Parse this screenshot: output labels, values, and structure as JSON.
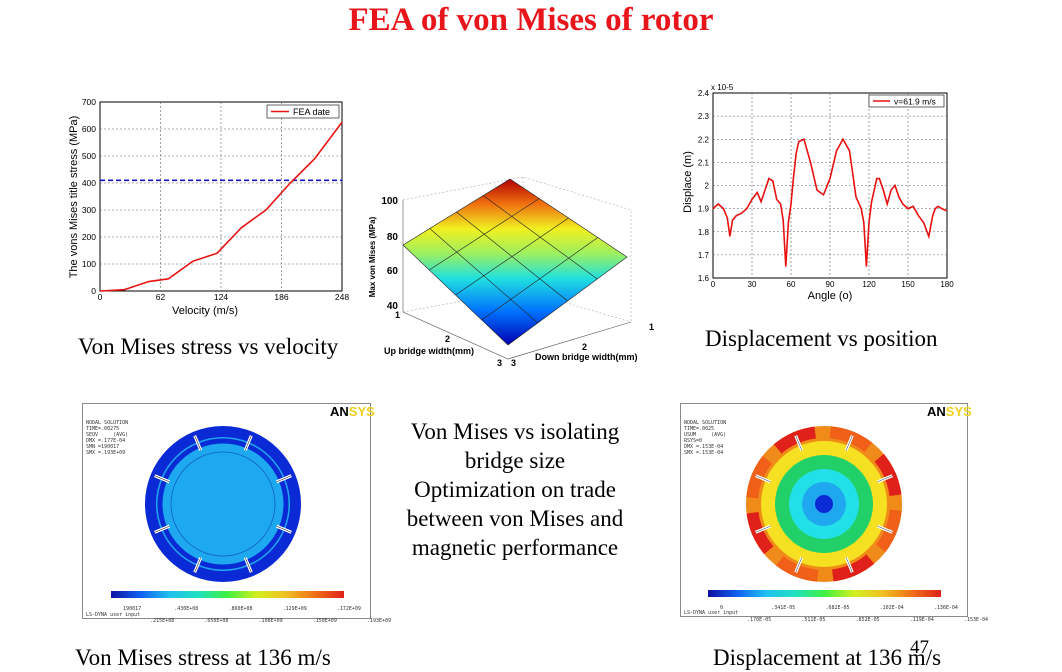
{
  "slide": {
    "title": "FEA of von Mises of rotor",
    "page_number": "47"
  },
  "captions": {
    "stress_vs_velocity": "Von Mises stress vs velocity",
    "displacement_vs_position": "Displacement vs position",
    "stress_at_136": "Von Mises stress at 136 m/s",
    "displacement_at_136": "Displacement at 136 m/s"
  },
  "center_text": {
    "lines": [
      "Von Mises vs isolating",
      "bridge size",
      "Optimization on trade",
      "between von Mises and",
      "magnetic performance"
    ]
  },
  "ansys": {
    "logo_black": "AN",
    "logo_color": "SYS",
    "stress_header": [
      "NODAL SOLUTION",
      "",
      "TIME=.00275",
      "SEQV     (AVG)",
      "DMX =.177E-04",
      "SMN =190017",
      "SMX =.193E+09"
    ],
    "stress_legend_top": [
      "190017",
      ".430E+08",
      ".860E+08",
      ".129E+09",
      ".172E+09"
    ],
    "stress_legend_bottom": [
      ".215E+08",
      ".650E+08",
      ".108E+09",
      ".150E+09",
      ".193E+09"
    ],
    "disp_header": [
      "NODAL SOLUTION",
      "",
      "TIME=.0025",
      "USUM     (AVG)",
      "RSYS=0",
      "DMX =.153E-04",
      "SMX =.153E-04"
    ],
    "disp_legend_top": [
      "0",
      ".341E-05",
      ".682E-05",
      ".102E-04",
      ".136E-04"
    ],
    "disp_legend_bottom": [
      ".170E-05",
      ".511E-05",
      ".852E-05",
      ".119E-04",
      ".153E-04"
    ],
    "footer": "LS-DYNA user input",
    "colors": {
      "dark_blue": "#0a2ad6",
      "light_blue": "#1ea8f0",
      "red": "#e0201a",
      "orange": "#f08a18",
      "yellow": "#f5e022",
      "green": "#22d06a",
      "cyan": "#22e0e8"
    }
  },
  "charts": {
    "surface": {
      "zlabel": "Max von Mises (MPa)",
      "xlabel": "Up bridge width(mm)",
      "ylabel": "Down bridge width(mm)",
      "z_ticks": [
        "100",
        "80",
        "60",
        "40"
      ],
      "x_ticks": [
        "1",
        "2",
        "3"
      ],
      "y_ticks": [
        "1",
        "2",
        "3"
      ]
    }
  },
  "chart_data": [
    {
      "type": "line",
      "title": "",
      "xlabel": "Velocity (m/s)",
      "ylabel": "The vons Mises title stress (MPa)",
      "xlim": [
        0,
        248
      ],
      "ylim": [
        0,
        700
      ],
      "x_ticks": [
        "0",
        "62",
        "124",
        "186",
        "248"
      ],
      "y_ticks": [
        "0",
        "100",
        "200",
        "300",
        "400",
        "500",
        "600",
        "700"
      ],
      "grid": true,
      "legend": "top-right",
      "series": [
        {
          "name": "FEA date",
          "color": "#e81010",
          "x": [
            0,
            25,
            50,
            70,
            95,
            120,
            145,
            170,
            195,
            220,
            248
          ],
          "y": [
            0,
            5,
            35,
            45,
            110,
            140,
            235,
            300,
            400,
            490,
            625
          ]
        }
      ],
      "reference_lines": [
        {
          "y": 410,
          "color": "#1616d0",
          "style": "dashed"
        }
      ]
    },
    {
      "type": "line",
      "title": "",
      "xlabel": "Angle (o)",
      "ylabel": "Displace (m)",
      "y_multiplier": "x 10-5",
      "xlim": [
        0,
        180
      ],
      "ylim": [
        1.6,
        2.4
      ],
      "x_ticks": [
        "0",
        "30",
        "60",
        "90",
        "120",
        "150",
        "180"
      ],
      "y_ticks": [
        "1.6",
        "1.7",
        "1.8",
        "1.9",
        "2",
        "2.1",
        "2.2",
        "2.3",
        "2.4"
      ],
      "grid": true,
      "legend": "top-right",
      "series": [
        {
          "name": "v=61.9 m/s",
          "color": "#e81010",
          "x": [
            0,
            4,
            8,
            11,
            13,
            15,
            18,
            22,
            26,
            30,
            34,
            37,
            40,
            43,
            46,
            49,
            52,
            54,
            56,
            58,
            60,
            62,
            64,
            66,
            70,
            75,
            80,
            85,
            90,
            95,
            100,
            105,
            110,
            114,
            116,
            118,
            120,
            122,
            124,
            126,
            128,
            131,
            134,
            137,
            140,
            143,
            146,
            150,
            154,
            158,
            162,
            166,
            169,
            171,
            173,
            176,
            180
          ],
          "y": [
            1.9,
            1.92,
            1.9,
            1.86,
            1.78,
            1.85,
            1.87,
            1.88,
            1.9,
            1.94,
            1.97,
            1.93,
            1.98,
            2.03,
            2.02,
            1.94,
            1.92,
            1.85,
            1.65,
            1.84,
            1.92,
            2.04,
            2.14,
            2.19,
            2.2,
            2.1,
            1.98,
            1.96,
            2.03,
            2.15,
            2.2,
            2.15,
            1.95,
            1.9,
            1.84,
            1.65,
            1.84,
            1.93,
            1.98,
            2.03,
            2.03,
            1.98,
            1.92,
            1.98,
            2.0,
            1.95,
            1.92,
            1.9,
            1.91,
            1.87,
            1.84,
            1.78,
            1.87,
            1.9,
            1.91,
            1.9,
            1.89
          ]
        }
      ]
    }
  ]
}
